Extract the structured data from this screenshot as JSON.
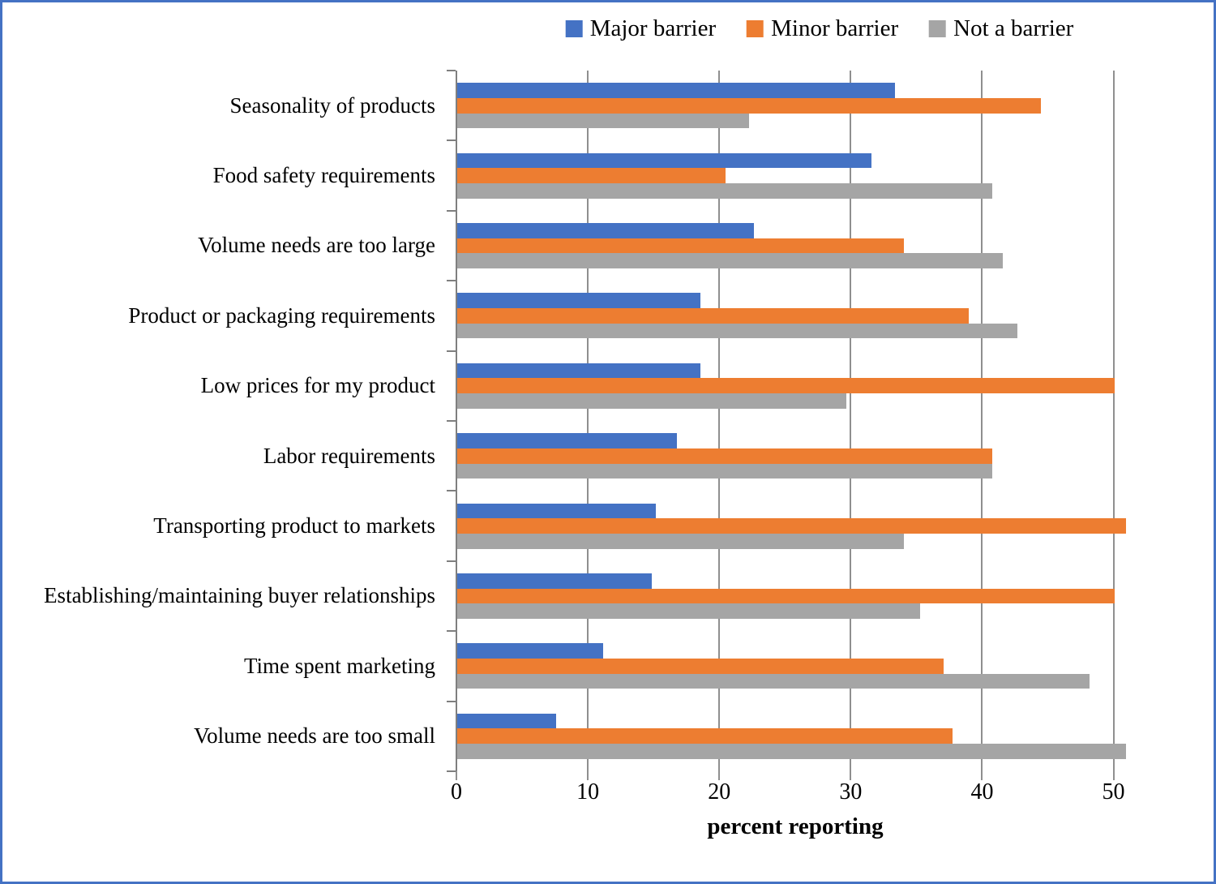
{
  "frame": {
    "border_color": "#4472C4",
    "background": "#FFFFFF"
  },
  "axis_style": {
    "axis_line_color": "#7F7F7F",
    "grid_color": "#8F8F8F"
  },
  "chart_data": {
    "type": "bar",
    "orientation": "horizontal",
    "title": "",
    "xlabel": "percent reporting",
    "ylabel": "",
    "xlim": [
      0,
      51.2
    ],
    "x_ticks": [
      0,
      10,
      20,
      30,
      40,
      50
    ],
    "grid": true,
    "legend_position": "top-center",
    "categories": [
      "Seasonality of products",
      "Food safety requirements",
      "Volume needs are too large",
      "Product or packaging requirements",
      "Low prices for my product",
      "Labor requirements",
      "Transporting product to markets",
      "Establishing/maintaining buyer relationships",
      "Time spent marketing",
      "Volume needs are too small"
    ],
    "series": [
      {
        "name": "Major barrier",
        "color": "#4472C4",
        "values": [
          33.3,
          31.5,
          22.6,
          18.5,
          18.5,
          16.7,
          15.1,
          14.8,
          11.1,
          7.5
        ]
      },
      {
        "name": "Minor barrier",
        "color": "#ED7D31",
        "values": [
          44.4,
          20.4,
          34.0,
          38.9,
          50.0,
          40.7,
          50.9,
          50.0,
          37.0,
          37.7
        ]
      },
      {
        "name": "Not a barrier",
        "color": "#A5A5A5",
        "values": [
          22.2,
          40.7,
          41.5,
          42.6,
          29.6,
          40.7,
          34.0,
          35.2,
          48.1,
          50.9
        ]
      }
    ]
  }
}
